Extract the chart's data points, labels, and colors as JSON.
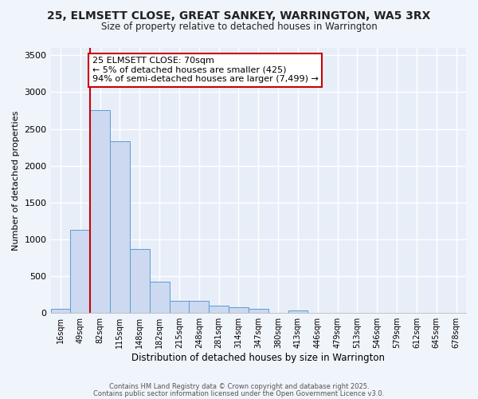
{
  "title_line1": "25, ELMSETT CLOSE, GREAT SANKEY, WARRINGTON, WA5 3RX",
  "title_line2": "Size of property relative to detached houses in Warrington",
  "xlabel": "Distribution of detached houses by size in Warrington",
  "ylabel": "Number of detached properties",
  "bar_color": "#ccd9f0",
  "bar_edge_color": "#5b9bd5",
  "bar_categories": [
    "16sqm",
    "49sqm",
    "82sqm",
    "115sqm",
    "148sqm",
    "182sqm",
    "215sqm",
    "248sqm",
    "281sqm",
    "314sqm",
    "347sqm",
    "380sqm",
    "413sqm",
    "446sqm",
    "479sqm",
    "513sqm",
    "546sqm",
    "579sqm",
    "612sqm",
    "645sqm",
    "678sqm"
  ],
  "bar_values": [
    55,
    1130,
    2760,
    2330,
    870,
    430,
    170,
    160,
    100,
    75,
    55,
    0,
    30,
    0,
    0,
    0,
    0,
    0,
    0,
    0,
    0
  ],
  "vline_x": 1.5,
  "vline_color": "#cc0000",
  "annotation_text": "25 ELMSETT CLOSE: 70sqm\n← 5% of detached houses are smaller (425)\n94% of semi-detached houses are larger (7,499) →",
  "ylim": [
    0,
    3600
  ],
  "yticks": [
    0,
    500,
    1000,
    1500,
    2000,
    2500,
    3000,
    3500
  ],
  "plot_bg_color": "#e8eef8",
  "fig_bg_color": "#f0f4fb",
  "grid_color": "#ffffff",
  "footer_line1": "Contains HM Land Registry data © Crown copyright and database right 2025.",
  "footer_line2": "Contains public sector information licensed under the Open Government Licence v3.0."
}
